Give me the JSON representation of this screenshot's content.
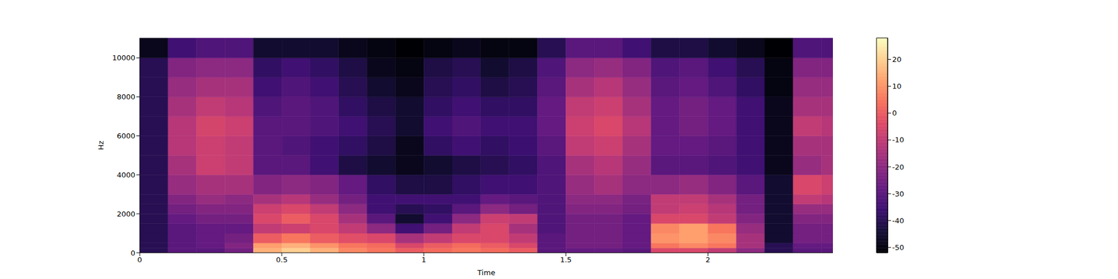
{
  "chart_data": {
    "type": "heatmap",
    "x_label": "Time",
    "y_label": "Hz",
    "color": "magma",
    "xlim": [
      0,
      2.44
    ],
    "xticks": [
      0,
      0.5,
      1,
      1.5,
      2
    ],
    "ylim": [
      0,
      11025
    ],
    "yticks": [
      0,
      2000,
      4000,
      6000,
      8000,
      10000
    ],
    "time_edges": [
      0,
      0.1,
      0.2,
      0.3,
      0.4,
      0.5,
      0.6,
      0.7,
      0.8,
      0.9,
      1.0,
      1.1,
      1.2,
      1.3,
      1.4,
      1.5,
      1.6,
      1.7,
      1.8,
      1.9,
      2.0,
      2.1,
      2.2,
      2.3,
      2.4,
      2.44
    ],
    "freq_edges": [
      0,
      250,
      500,
      1000,
      1500,
      2000,
      2500,
      3000,
      4000,
      5000,
      6000,
      7000,
      8000,
      9000,
      10000,
      11025
    ],
    "cells": [
      [
        -40,
        -30,
        -30,
        -25,
        15,
        20,
        15,
        8,
        5,
        0,
        3,
        5,
        3,
        0,
        -30,
        -28,
        -28,
        -30,
        -5,
        -5,
        -10,
        -20,
        -40,
        -30,
        -30
      ],
      [
        -40,
        -30,
        -28,
        -22,
        12,
        15,
        10,
        5,
        3,
        -5,
        0,
        3,
        0,
        -5,
        -30,
        -25,
        -25,
        -28,
        5,
        8,
        5,
        -15,
        -40,
        -28,
        -28
      ],
      [
        -40,
        -30,
        -28,
        -25,
        0,
        5,
        0,
        -3,
        -5,
        -15,
        -10,
        -5,
        -5,
        -10,
        -30,
        -25,
        -25,
        -28,
        10,
        12,
        8,
        -15,
        -45,
        -25,
        -25
      ],
      [
        -40,
        -30,
        -28,
        -28,
        -10,
        -8,
        -5,
        -10,
        -20,
        -35,
        -25,
        -10,
        -5,
        -15,
        -32,
        -25,
        -25,
        -28,
        8,
        12,
        5,
        -18,
        -45,
        -25,
        -25
      ],
      [
        -40,
        -28,
        -25,
        -25,
        -5,
        0,
        -5,
        -15,
        -30,
        -45,
        -35,
        -20,
        -8,
        -10,
        -32,
        -25,
        -25,
        -28,
        -5,
        -5,
        -10,
        -22,
        -45,
        -22,
        -22
      ],
      [
        -40,
        -25,
        -22,
        -22,
        -8,
        -5,
        -10,
        -20,
        -35,
        -40,
        -38,
        -30,
        -20,
        -25,
        -32,
        -22,
        -22,
        -25,
        -10,
        -8,
        -12,
        -25,
        -45,
        -18,
        -18
      ],
      [
        -40,
        -22,
        -18,
        -20,
        -15,
        -12,
        -18,
        -25,
        -35,
        -35,
        -35,
        -35,
        -28,
        -30,
        -32,
        -20,
        -20,
        -24,
        -10,
        -10,
        -15,
        -25,
        -45,
        -10,
        -12
      ],
      [
        -40,
        -18,
        -15,
        -15,
        -22,
        -20,
        -22,
        -28,
        -38,
        -42,
        -42,
        -38,
        -35,
        -35,
        -32,
        -18,
        -15,
        -20,
        -20,
        -18,
        -22,
        -30,
        -45,
        -5,
        -8
      ],
      [
        -40,
        -15,
        -8,
        -10,
        -30,
        -30,
        -35,
        -42,
        -45,
        -48,
        -45,
        -42,
        -40,
        -38,
        -32,
        -15,
        -12,
        -18,
        -30,
        -30,
        -32,
        -35,
        -48,
        -18,
        -15
      ],
      [
        -40,
        -12,
        -8,
        -10,
        -30,
        -32,
        -35,
        -38,
        -42,
        -48,
        -38,
        -35,
        -38,
        -36,
        -30,
        -10,
        -8,
        -15,
        -28,
        -28,
        -30,
        -35,
        -48,
        -15,
        -15
      ],
      [
        -40,
        -12,
        -6,
        -8,
        -30,
        -30,
        -32,
        -35,
        -40,
        -45,
        -35,
        -32,
        -35,
        -35,
        -28,
        -8,
        -5,
        -12,
        -28,
        -25,
        -28,
        -35,
        -48,
        -10,
        -12
      ],
      [
        -40,
        -15,
        -10,
        -12,
        -32,
        -30,
        -32,
        -38,
        -42,
        -45,
        -38,
        -35,
        -38,
        -38,
        -28,
        -10,
        -8,
        -15,
        -28,
        -25,
        -28,
        -35,
        -48,
        -15,
        -15
      ],
      [
        -40,
        -18,
        -15,
        -15,
        -35,
        -32,
        -35,
        -40,
        -45,
        -48,
        -40,
        -38,
        -42,
        -40,
        -30,
        -15,
        -12,
        -18,
        -30,
        -28,
        -32,
        -38,
        -50,
        -18,
        -18
      ],
      [
        -40,
        -22,
        -20,
        -20,
        -38,
        -35,
        -38,
        -42,
        -48,
        -50,
        -42,
        -40,
        -45,
        -42,
        -32,
        -20,
        -18,
        -22,
        -32,
        -30,
        -35,
        -40,
        -50,
        -22,
        -22
      ],
      [
        -48,
        -35,
        -32,
        -32,
        -45,
        -45,
        -45,
        -48,
        -50,
        -52,
        -50,
        -48,
        -50,
        -50,
        -40,
        -30,
        -30,
        -35,
        -42,
        -42,
        -45,
        -48,
        -52,
        -32,
        -32
      ]
    ],
    "colorbar": {
      "range": [
        -52,
        28
      ],
      "ticks": [
        -50,
        -40,
        -30,
        -20,
        -10,
        0,
        10,
        20
      ]
    }
  }
}
